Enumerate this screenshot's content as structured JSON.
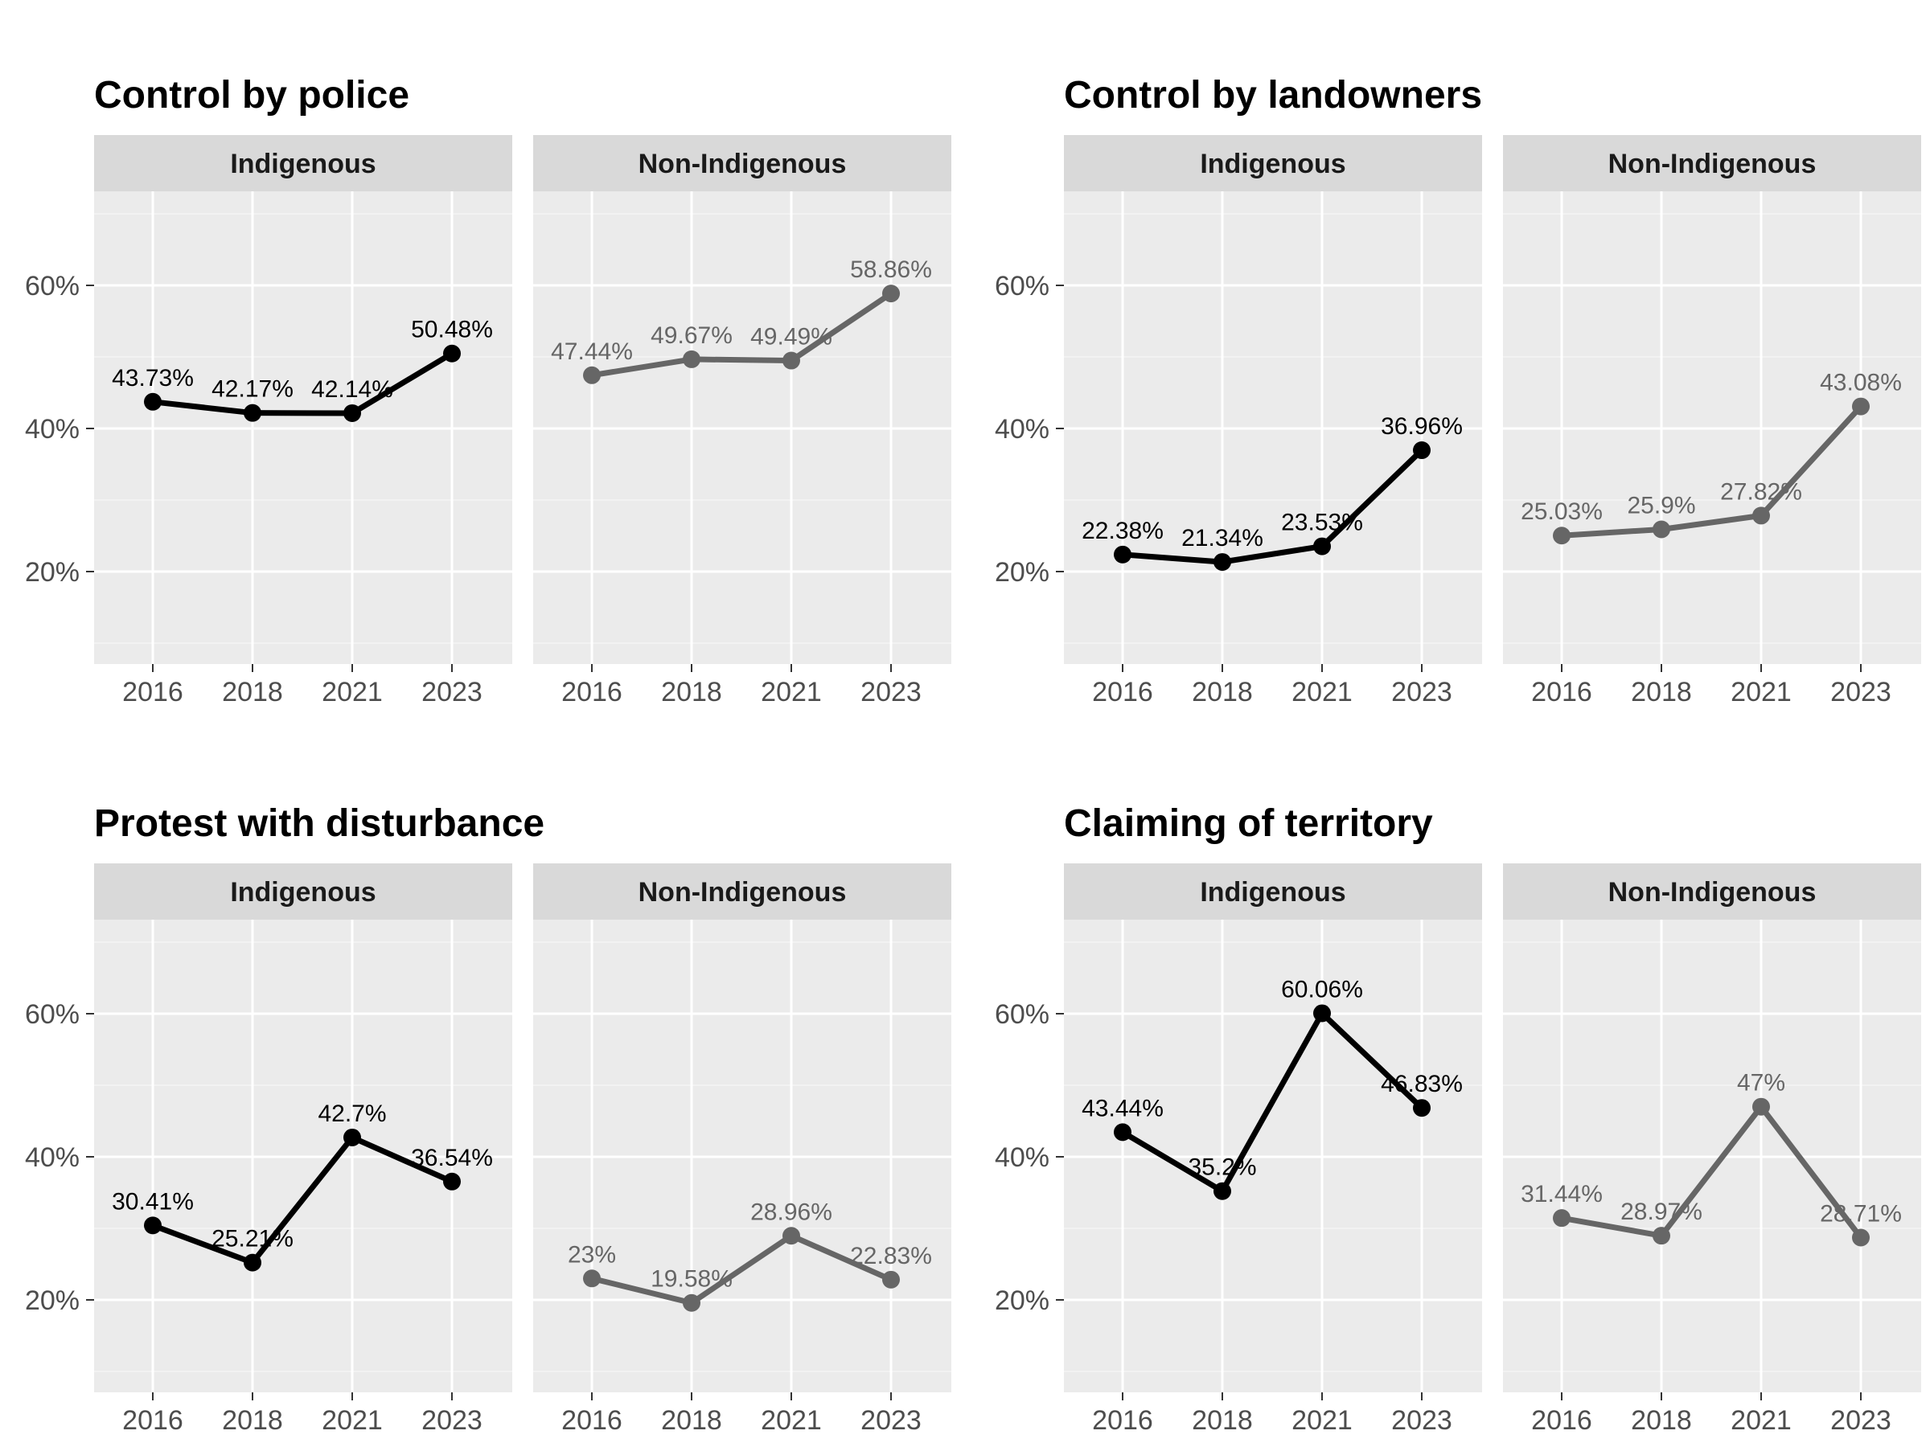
{
  "chart_data": [
    {
      "type": "line",
      "title": "Control by police",
      "facets": [
        "Indigenous",
        "Non-Indigenous"
      ],
      "x": [
        "2016",
        "2018",
        "2021",
        "2023"
      ],
      "ylim": [
        7,
        73
      ],
      "yticks": [
        20,
        40,
        60
      ],
      "ytick_labels": [
        "20%",
        "40%",
        "60%"
      ],
      "grid": true,
      "series": [
        {
          "facet": "Indigenous",
          "color": "#000000",
          "values": [
            43.73,
            42.17,
            42.14,
            50.48
          ],
          "labels": [
            "43.73%",
            "42.17%",
            "42.14%",
            "50.48%"
          ]
        },
        {
          "facet": "Non-Indigenous",
          "color": "#666666",
          "values": [
            47.44,
            49.67,
            49.49,
            58.86
          ],
          "labels": [
            "47.44%",
            "49.67%",
            "49.49%",
            "58.86%"
          ]
        }
      ]
    },
    {
      "type": "line",
      "title": "Control by landowners",
      "facets": [
        "Indigenous",
        "Non-Indigenous"
      ],
      "x": [
        "2016",
        "2018",
        "2021",
        "2023"
      ],
      "ylim": [
        7,
        73
      ],
      "yticks": [
        20,
        40,
        60
      ],
      "ytick_labels": [
        "20%",
        "40%",
        "60%"
      ],
      "grid": true,
      "series": [
        {
          "facet": "Indigenous",
          "color": "#000000",
          "values": [
            22.38,
            21.34,
            23.53,
            36.96
          ],
          "labels": [
            "22.38%",
            "21.34%",
            "23.53%",
            "36.96%"
          ]
        },
        {
          "facet": "Non-Indigenous",
          "color": "#666666",
          "values": [
            25.03,
            25.9,
            27.82,
            43.08
          ],
          "labels": [
            "25.03%",
            "25.9%",
            "27.82%",
            "43.08%"
          ]
        }
      ]
    },
    {
      "type": "line",
      "title": "Protest with disturbance",
      "facets": [
        "Indigenous",
        "Non-Indigenous"
      ],
      "x": [
        "2016",
        "2018",
        "2021",
        "2023"
      ],
      "ylim": [
        7,
        73
      ],
      "yticks": [
        20,
        40,
        60
      ],
      "ytick_labels": [
        "20%",
        "40%",
        "60%"
      ],
      "grid": true,
      "series": [
        {
          "facet": "Indigenous",
          "color": "#000000",
          "values": [
            30.41,
            25.21,
            42.7,
            36.54
          ],
          "labels": [
            "30.41%",
            "25.21%",
            "42.7%",
            "36.54%"
          ]
        },
        {
          "facet": "Non-Indigenous",
          "color": "#666666",
          "values": [
            23,
            19.58,
            28.96,
            22.83
          ],
          "labels": [
            "23%",
            "19.58%",
            "28.96%",
            "22.83%"
          ]
        }
      ]
    },
    {
      "type": "line",
      "title": "Claiming of territory",
      "facets": [
        "Indigenous",
        "Non-Indigenous"
      ],
      "x": [
        "2016",
        "2018",
        "2021",
        "2023"
      ],
      "ylim": [
        7,
        73
      ],
      "yticks": [
        20,
        40,
        60
      ],
      "ytick_labels": [
        "20%",
        "40%",
        "60%"
      ],
      "grid": true,
      "series": [
        {
          "facet": "Indigenous",
          "color": "#000000",
          "values": [
            43.44,
            35.2,
            60.06,
            46.83
          ],
          "labels": [
            "43.44%",
            "35.2%",
            "60.06%",
            "46.83%"
          ]
        },
        {
          "facet": "Non-Indigenous",
          "color": "#666666",
          "values": [
            31.44,
            28.97,
            47,
            28.71
          ],
          "labels": [
            "31.44%",
            "28.97%",
            "47%",
            "28.71%"
          ]
        }
      ]
    }
  ]
}
